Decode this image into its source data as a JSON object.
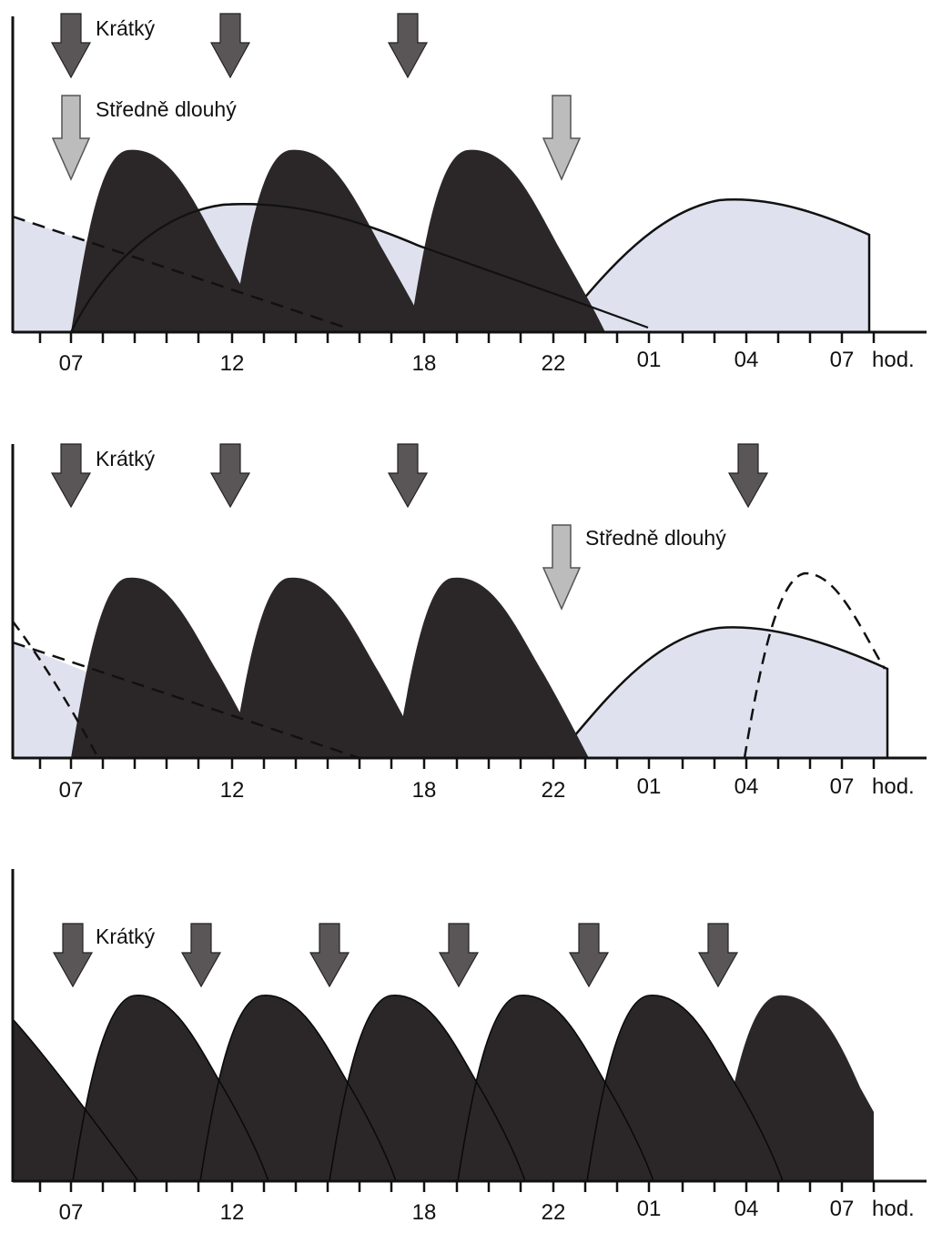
{
  "colors": {
    "short_curve_fill": "#2b2728",
    "intermediate_curve_fill": "#dfe2ee",
    "short_arrow": "#5a5657",
    "intermediate_arrow": "#bcbcbc",
    "axis": "#111111"
  },
  "axis_tick_labels": [
    "07",
    "12",
    "18",
    "22",
    "01",
    "04",
    "07"
  ],
  "axis_unit": "hod.",
  "panels": [
    {
      "short_label": "Krátký",
      "intermediate_label": "Středně dlouhý",
      "short_arrow_hours": [
        "07",
        "12",
        "18"
      ],
      "intermediate_arrow_hours": [
        "07",
        "22"
      ]
    },
    {
      "short_label": "Krátký",
      "intermediate_label": "Středně dlouhý",
      "short_arrow_hours": [
        "07",
        "12",
        "18",
        "04"
      ],
      "intermediate_arrow_hours": [
        "22"
      ]
    },
    {
      "short_label": "Krátký",
      "short_arrow_hours": [
        "07",
        "11",
        "15",
        "19",
        "23",
        "03"
      ]
    }
  ]
}
